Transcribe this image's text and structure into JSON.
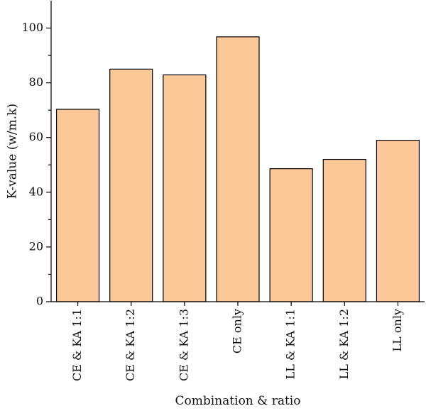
{
  "chart_data": {
    "type": "bar",
    "categories": [
      "CE & KA 1:1",
      "CE & KA 1:2",
      "CE & KA 1:3",
      "CE only",
      "LL & KA 1:1",
      "LL & KA 1:2",
      "LL only"
    ],
    "values": [
      70.3,
      85.0,
      82.9,
      96.8,
      48.6,
      52.0,
      59.0
    ],
    "xlabel": "Combination & ratio",
    "ylabel": "K-value (w/m.k)",
    "ylim": [
      0,
      110
    ],
    "yticks": [
      0,
      20,
      40,
      60,
      80,
      100
    ],
    "grid": false,
    "bar_color": "#FDC897",
    "bar_stroke": "#000000"
  }
}
